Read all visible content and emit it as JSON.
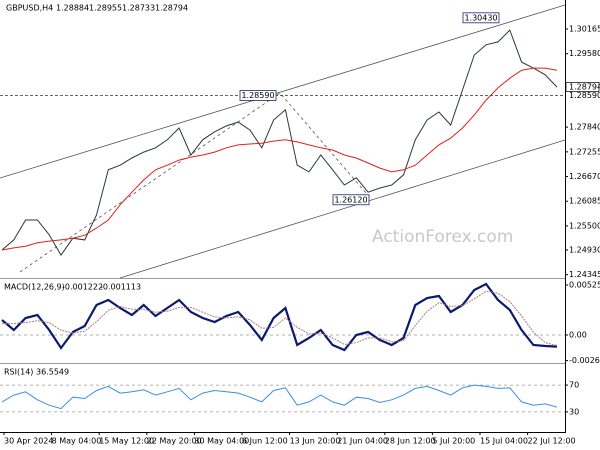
{
  "chart_data": [
    {
      "type": "line",
      "title": "GBPUSD,H4",
      "ohlc": [
        1.28884,
        1.28955,
        1.28733,
        1.28794
      ],
      "watermark": "ActionForex.com",
      "x_labels": [
        "30 Apr 2024",
        "8 May 04:00",
        "15 May 12:00",
        "22 May 20:00",
        "30 May 04:00",
        "6 Jun 12:00",
        "13 Jun 20:00",
        "21 Jun 04:00",
        "28 Jun 12:00",
        "5 Jul 20:00",
        "15 Jul 04:00",
        "22 Jul 12:00"
      ],
      "ylim": [
        1.24267,
        1.30852
      ],
      "yticks": [
        1.30165,
        {
          "value": 1.2958,
          "label": "1.29580"
        },
        {
          "value": 1.2784,
          "label": "1.27840"
        },
        1.27255,
        {
          "value": 1.2667,
          "label": "1.26670"
        },
        1.26085,
        {
          "value": 1.255,
          "label": "1.25500"
        },
        {
          "value": 1.2493,
          "label": "1.24930"
        },
        1.24345
      ],
      "last": 1.28794,
      "hline": {
        "value": 1.2859,
        "label": "1.28590"
      },
      "annotations": [
        {
          "value": 1.2859,
          "label": "1.28590"
        },
        {
          "value": 1.2612,
          "label": "1.26120"
        },
        {
          "value": 1.3043,
          "label": "1.30430"
        }
      ],
      "series": [
        {
          "color": "#2b3a2e",
          "values": [
            1.2493,
            1.2517,
            1.2564,
            1.2564,
            1.2529,
            1.2481,
            1.2521,
            1.2517,
            1.2576,
            1.2683,
            1.2694,
            1.2711,
            1.2725,
            1.2735,
            1.2754,
            1.2782,
            1.2718,
            1.2754,
            1.2773,
            1.2787,
            1.2796,
            1.2777,
            1.2735,
            1.2801,
            1.2825,
            1.2694,
            1.2678,
            1.2718,
            1.2683,
            1.2647,
            1.2664,
            1.263,
            1.264,
            1.2647,
            1.2671,
            1.2754,
            1.2801,
            1.282,
            1.2789,
            1.2872,
            1.2955,
            1.2979,
            1.2986,
            1.3014,
            1.2938,
            1.2924,
            1.2908,
            1.2879
          ]
        },
        {
          "color": "#e0201b",
          "values": [
            1.2493,
            1.2498,
            1.2502,
            1.251,
            1.2514,
            1.2517,
            1.2521,
            1.2528,
            1.2545,
            1.2564,
            1.26,
            1.263,
            1.2659,
            1.2683,
            1.2694,
            1.2706,
            1.2713,
            1.2718,
            1.2725,
            1.2735,
            1.2742,
            1.2744,
            1.2746,
            1.2751,
            1.2754,
            1.2749,
            1.2742,
            1.2735,
            1.273,
            1.2718,
            1.2711,
            1.2699,
            1.2687,
            1.2678,
            1.2683,
            1.2694,
            1.2718,
            1.2742,
            1.2758,
            1.2782,
            1.2813,
            1.2848,
            1.2877,
            1.29,
            1.2919,
            1.2924,
            1.2924,
            1.2919
          ]
        }
      ]
    },
    {
      "type": "line",
      "title": "MACD(12,26,9)",
      "header_values": [
        -0.001222,
        -0.001113
      ],
      "ylim": [
        -0.002839,
        0.005783
      ],
      "yticks": [
        0.005257,
        {
          "value": 0,
          "label": "0.00"
        },
        -0.00269
      ],
      "gridlines": [
        0
      ],
      "series": [
        {
          "color": "#0a1a6e",
          "values": [
            0.00158,
            0.00053,
            0.00179,
            0.0021,
            0.00053,
            -0.00137,
            0.00032,
            0.00095,
            0.00315,
            0.00368,
            0.00284,
            0.0021,
            0.00315,
            0.002,
            0.00284,
            0.00368,
            0.00242,
            0.00179,
            0.00137,
            0.002,
            0.00242,
            0.00105,
            -0.00053,
            0.00179,
            0.00284,
            -0.00105,
            -0.00032,
            0.00053,
            -0.00105,
            -0.00158,
            0,
            0.00032,
            -0.00053,
            -0.00105,
            -0.00032,
            0.00315,
            0.00389,
            0.0041,
            0.00242,
            0.00315,
            0.00473,
            0.00536,
            0.00368,
            0.00263,
            0.00053,
            -0.00105,
            -0.00116,
            -0.00122
          ]
        },
        {
          "color": "#b07a7a",
          "values": [
            0.0012,
            0.0012,
            0.0013,
            0.0015,
            0.0013,
            0.0005,
            0.0002,
            0.0004,
            0.0014,
            0.0026,
            0.003,
            0.0027,
            0.0027,
            0.0024,
            0.0025,
            0.0029,
            0.0029,
            0.0024,
            0.0019,
            0.0018,
            0.0019,
            0.0016,
            0.0007,
            0.0008,
            0.0018,
            0.0008,
            0.0001,
            0.0002,
            -0.0003,
            -0.001,
            -0.0008,
            -0.0003,
            -0.0003,
            -0.0007,
            -0.0006,
            0.001,
            0.0025,
            0.0034,
            0.003,
            0.0031,
            0.0038,
            0.0046,
            0.0044,
            0.0035,
            0.002,
            0.0003,
            -0.0008,
            -0.0011
          ]
        }
      ]
    },
    {
      "type": "line",
      "title": "RSI(14)",
      "header_values": [
        36.5549
      ],
      "ylim": [
        0,
        100
      ],
      "yticks": [
        70,
        30
      ],
      "gridlines": [
        70,
        30
      ],
      "series": [
        {
          "color": "#3a8ee6",
          "values": [
            45,
            55,
            60,
            48,
            40,
            35,
            52,
            50,
            62,
            68,
            58,
            60,
            63,
            55,
            60,
            65,
            48,
            58,
            62,
            60,
            58,
            52,
            45,
            62,
            66,
            40,
            45,
            55,
            45,
            40,
            52,
            50,
            44,
            48,
            55,
            65,
            68,
            62,
            55,
            66,
            70,
            68,
            65,
            66,
            45,
            40,
            42,
            37
          ]
        }
      ]
    }
  ]
}
